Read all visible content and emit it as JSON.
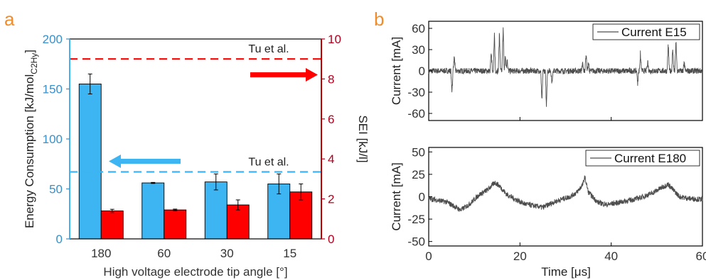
{
  "panels": {
    "a": {
      "label": "a",
      "label_color": "#F28C28"
    },
    "b": {
      "label": "b",
      "label_color": "#F28C28"
    }
  },
  "colors": {
    "energy": "#3DB5F2",
    "sei": "#FF0000",
    "energy_axis": "#3A8FC9",
    "sei_axis": "#B0001E",
    "trace": "#4D4D4D"
  },
  "chart_data": [
    {
      "panel": "a",
      "type": "bar",
      "categories": [
        "180",
        "60",
        "30",
        "15"
      ],
      "xlabel": "High voltage electrode tip angle [°]",
      "series": [
        {
          "name": "Energy Consumption",
          "axis": "left",
          "color": "#3DB5F2",
          "values": [
            155,
            56,
            57,
            55
          ],
          "errors": [
            10,
            0.5,
            8,
            10
          ]
        },
        {
          "name": "SEI",
          "axis": "right",
          "color": "#FF0000",
          "values": [
            1.4,
            1.45,
            1.7,
            2.35
          ],
          "errors": [
            0.08,
            0.04,
            0.25,
            0.4
          ]
        }
      ],
      "left_axis": {
        "label_main": "Energy Consumption [kJ/mol",
        "label_sub": "C2Hy",
        "label_end": "]",
        "ylim": [
          0,
          200
        ],
        "ticks": [
          "0",
          "50",
          "100",
          "150",
          "200"
        ]
      },
      "right_axis": {
        "label": "SEI [kJ/l]",
        "ylim": [
          0,
          10
        ],
        "ticks": [
          "0",
          "2",
          "4",
          "6",
          "8",
          "10"
        ]
      },
      "reference_lines": [
        {
          "label": "Tu et al.",
          "axis": "right",
          "value": 9,
          "color": "#FF0000",
          "style": "dashed"
        },
        {
          "label": "Tu et al.",
          "axis": "left",
          "value": 67,
          "color": "#3DB5F2",
          "style": "dashed"
        }
      ],
      "arrows": [
        {
          "axis": "right",
          "direction": "right",
          "color": "#FF0000"
        },
        {
          "axis": "left",
          "direction": "left",
          "color": "#3DB5F2"
        }
      ]
    },
    {
      "panel": "b",
      "type": "line",
      "subplots": [
        {
          "legend": "Current E15",
          "ylabel": "Current [mA]",
          "ylim": [
            -70,
            70
          ],
          "yticks": [
            "60",
            "30",
            "0",
            "-30",
            "-60"
          ],
          "xlim": [
            0,
            60
          ],
          "spikes": [
            [
              5.1,
              -30
            ],
            [
              5.6,
              22
            ],
            [
              13.7,
              28
            ],
            [
              14.4,
              52
            ],
            [
              15.5,
              58
            ],
            [
              16.3,
              68
            ],
            [
              16.8,
              22
            ],
            [
              17.2,
              18
            ],
            [
              24.8,
              -45
            ],
            [
              25.8,
              -52
            ],
            [
              27.0,
              -18
            ],
            [
              33.7,
              12
            ],
            [
              34.5,
              28
            ],
            [
              35.0,
              12
            ],
            [
              45.8,
              -18
            ],
            [
              46.4,
              25
            ],
            [
              48.0,
              15
            ],
            [
              52.5,
              40
            ],
            [
              53.5,
              35
            ],
            [
              54.2,
              45
            ],
            [
              56.0,
              12
            ]
          ],
          "noise": 4
        },
        {
          "legend": "Current E180",
          "ylabel": "Current [mA]",
          "ylim": [
            -55,
            55
          ],
          "yticks": [
            "50",
            "25",
            "0",
            "-25",
            "-50"
          ],
          "xlim": [
            0,
            60
          ],
          "xticks": [
            "0",
            "20",
            "40",
            "60"
          ],
          "xlabel": "Time [μs]",
          "profile": [
            [
              0,
              -2
            ],
            [
              2,
              -4
            ],
            [
              4,
              -6
            ],
            [
              6,
              -12
            ],
            [
              7,
              -15
            ],
            [
              9,
              -8
            ],
            [
              11,
              2
            ],
            [
              13,
              8
            ],
            [
              14.5,
              16
            ],
            [
              15.5,
              12
            ],
            [
              17,
              3
            ],
            [
              19,
              -3
            ],
            [
              21,
              -8
            ],
            [
              23,
              -10
            ],
            [
              25,
              -12
            ],
            [
              27,
              -7
            ],
            [
              29,
              -3
            ],
            [
              31,
              0
            ],
            [
              32.5,
              5
            ],
            [
              33.8,
              14
            ],
            [
              34.2,
              22
            ],
            [
              35,
              5
            ],
            [
              37,
              -6
            ],
            [
              39,
              -9
            ],
            [
              41,
              -7
            ],
            [
              43,
              -5
            ],
            [
              45,
              -3
            ],
            [
              47,
              0
            ],
            [
              49,
              4
            ],
            [
              51,
              10
            ],
            [
              52.5,
              14
            ],
            [
              53.5,
              8
            ],
            [
              55,
              0
            ],
            [
              57,
              -2
            ],
            [
              60,
              -3
            ]
          ],
          "noise": 3
        }
      ]
    }
  ]
}
